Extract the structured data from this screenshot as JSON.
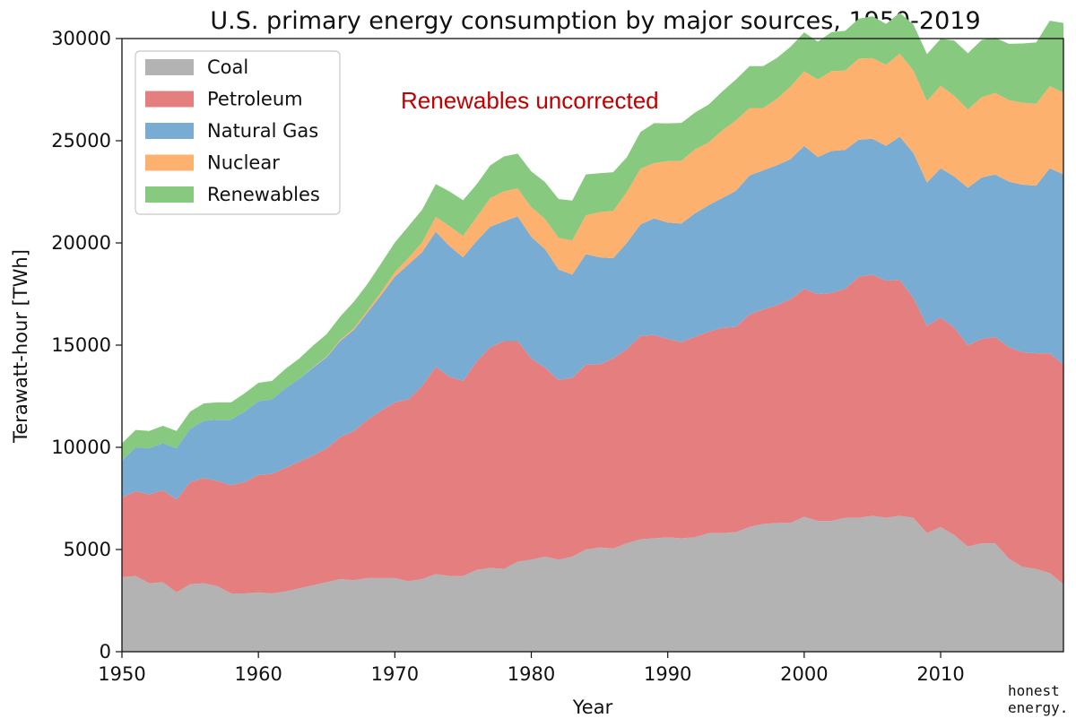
{
  "chart_data": {
    "type": "area",
    "stacked": true,
    "title": "U.S. primary energy consumption by major sources, 1950-2019",
    "xlabel": "Year",
    "ylabel": "Terawatt-hour [TWh]",
    "xlim": [
      1950,
      2019
    ],
    "ylim": [
      0,
      30000
    ],
    "xticks": [
      1950,
      1960,
      1970,
      1980,
      1990,
      2000,
      2010
    ],
    "yticks": [
      0,
      5000,
      10000,
      15000,
      20000,
      25000,
      30000
    ],
    "grid": false,
    "legend_position": "top-left",
    "annotation": "Renewables uncorrected",
    "annotation_color": "#c00000",
    "brand": [
      "honest",
      "energy."
    ],
    "years": [
      1950,
      1951,
      1952,
      1953,
      1954,
      1955,
      1956,
      1957,
      1958,
      1959,
      1960,
      1961,
      1962,
      1963,
      1964,
      1965,
      1966,
      1967,
      1968,
      1969,
      1970,
      1971,
      1972,
      1973,
      1974,
      1975,
      1976,
      1977,
      1978,
      1979,
      1980,
      1981,
      1982,
      1983,
      1984,
      1985,
      1986,
      1987,
      1988,
      1989,
      1990,
      1991,
      1992,
      1993,
      1994,
      1995,
      1996,
      1997,
      1998,
      1999,
      2000,
      2001,
      2002,
      2003,
      2004,
      2005,
      2006,
      2007,
      2008,
      2009,
      2010,
      2011,
      2012,
      2013,
      2014,
      2015,
      2016,
      2017,
      2018,
      2019
    ],
    "series": [
      {
        "name": "Coal",
        "color": "#b3b3b3",
        "values": [
          3650,
          3700,
          3350,
          3400,
          2900,
          3300,
          3350,
          3200,
          2850,
          2850,
          2900,
          2850,
          2950,
          3100,
          3250,
          3400,
          3550,
          3500,
          3600,
          3600,
          3600,
          3450,
          3550,
          3800,
          3700,
          3700,
          4000,
          4100,
          4050,
          4400,
          4500,
          4650,
          4500,
          4650,
          5000,
          5100,
          5050,
          5300,
          5500,
          5550,
          5600,
          5550,
          5600,
          5800,
          5800,
          5850,
          6100,
          6250,
          6300,
          6300,
          6600,
          6400,
          6400,
          6550,
          6550,
          6650,
          6550,
          6650,
          6550,
          5800,
          6100,
          5700,
          5150,
          5300,
          5300,
          4550,
          4150,
          4050,
          3850,
          3300
        ]
      },
      {
        "name": "Petroleum",
        "color": "#e57f7f",
        "values": [
          3900,
          4150,
          4350,
          4500,
          4550,
          5000,
          5150,
          5150,
          5300,
          5450,
          5750,
          5850,
          6050,
          6200,
          6350,
          6550,
          6950,
          7300,
          7750,
          8200,
          8600,
          8900,
          9450,
          10150,
          9750,
          9550,
          10200,
          10800,
          11150,
          10800,
          9850,
          9250,
          8800,
          8750,
          9050,
          8950,
          9300,
          9500,
          9950,
          9950,
          9700,
          9600,
          9800,
          9850,
          10050,
          10050,
          10400,
          10500,
          10650,
          10950,
          11150,
          11100,
          11150,
          11200,
          11800,
          11800,
          11600,
          11550,
          10750,
          10150,
          10250,
          10150,
          9850,
          10000,
          10100,
          10350,
          10500,
          10550,
          10750,
          10750
        ]
      },
      {
        "name": "Natural Gas",
        "color": "#78acd3",
        "values": [
          1800,
          2150,
          2250,
          2300,
          2500,
          2600,
          2800,
          3000,
          3200,
          3450,
          3600,
          3650,
          3900,
          4050,
          4300,
          4450,
          4700,
          4950,
          5250,
          5650,
          6150,
          6600,
          6550,
          6600,
          6400,
          6050,
          5900,
          5900,
          5850,
          6100,
          5950,
          5800,
          5400,
          5050,
          5400,
          5250,
          4900,
          5200,
          5450,
          5700,
          5700,
          5800,
          6050,
          6200,
          6350,
          6650,
          6800,
          6800,
          6850,
          6850,
          7000,
          6700,
          6950,
          6800,
          6700,
          6650,
          6600,
          7000,
          7100,
          7000,
          7300,
          7400,
          7700,
          7900,
          7950,
          8100,
          8200,
          8200,
          9050,
          9300
        ]
      },
      {
        "name": "Nuclear",
        "color": "#fdb16f",
        "values": [
          0,
          0,
          0,
          0,
          0,
          0,
          0,
          0,
          0,
          0,
          0,
          0,
          0,
          0,
          20,
          40,
          50,
          80,
          100,
          150,
          220,
          320,
          470,
          730,
          970,
          1040,
          1170,
          1400,
          1480,
          1370,
          1450,
          1480,
          1550,
          1670,
          1900,
          2210,
          2310,
          2490,
          2730,
          2710,
          3000,
          3070,
          3130,
          3070,
          3310,
          3450,
          3300,
          3050,
          3250,
          3550,
          3650,
          3800,
          3910,
          3880,
          3970,
          3940,
          3970,
          4060,
          4040,
          3990,
          4040,
          3950,
          3830,
          3930,
          3990,
          3990,
          4010,
          4010,
          4020,
          4010
        ]
      },
      {
        "name": "Renewables",
        "color": "#86c97f",
        "values": [
          850,
          850,
          850,
          850,
          850,
          850,
          850,
          850,
          850,
          900,
          900,
          900,
          950,
          1000,
          1050,
          1100,
          1150,
          1300,
          1300,
          1400,
          1450,
          1550,
          1600,
          1600,
          1700,
          1750,
          1600,
          1600,
          1700,
          1700,
          1750,
          1800,
          1900,
          1950,
          2000,
          1900,
          1900,
          1700,
          1800,
          1950,
          1850,
          1850,
          1800,
          1850,
          1900,
          2000,
          2050,
          2050,
          2000,
          1950,
          1900,
          1850,
          1900,
          1950,
          1950,
          2050,
          2000,
          2000,
          2250,
          2300,
          2300,
          2700,
          2750,
          2800,
          2700,
          2750,
          2900,
          3000,
          3200,
          3400
        ]
      }
    ]
  }
}
